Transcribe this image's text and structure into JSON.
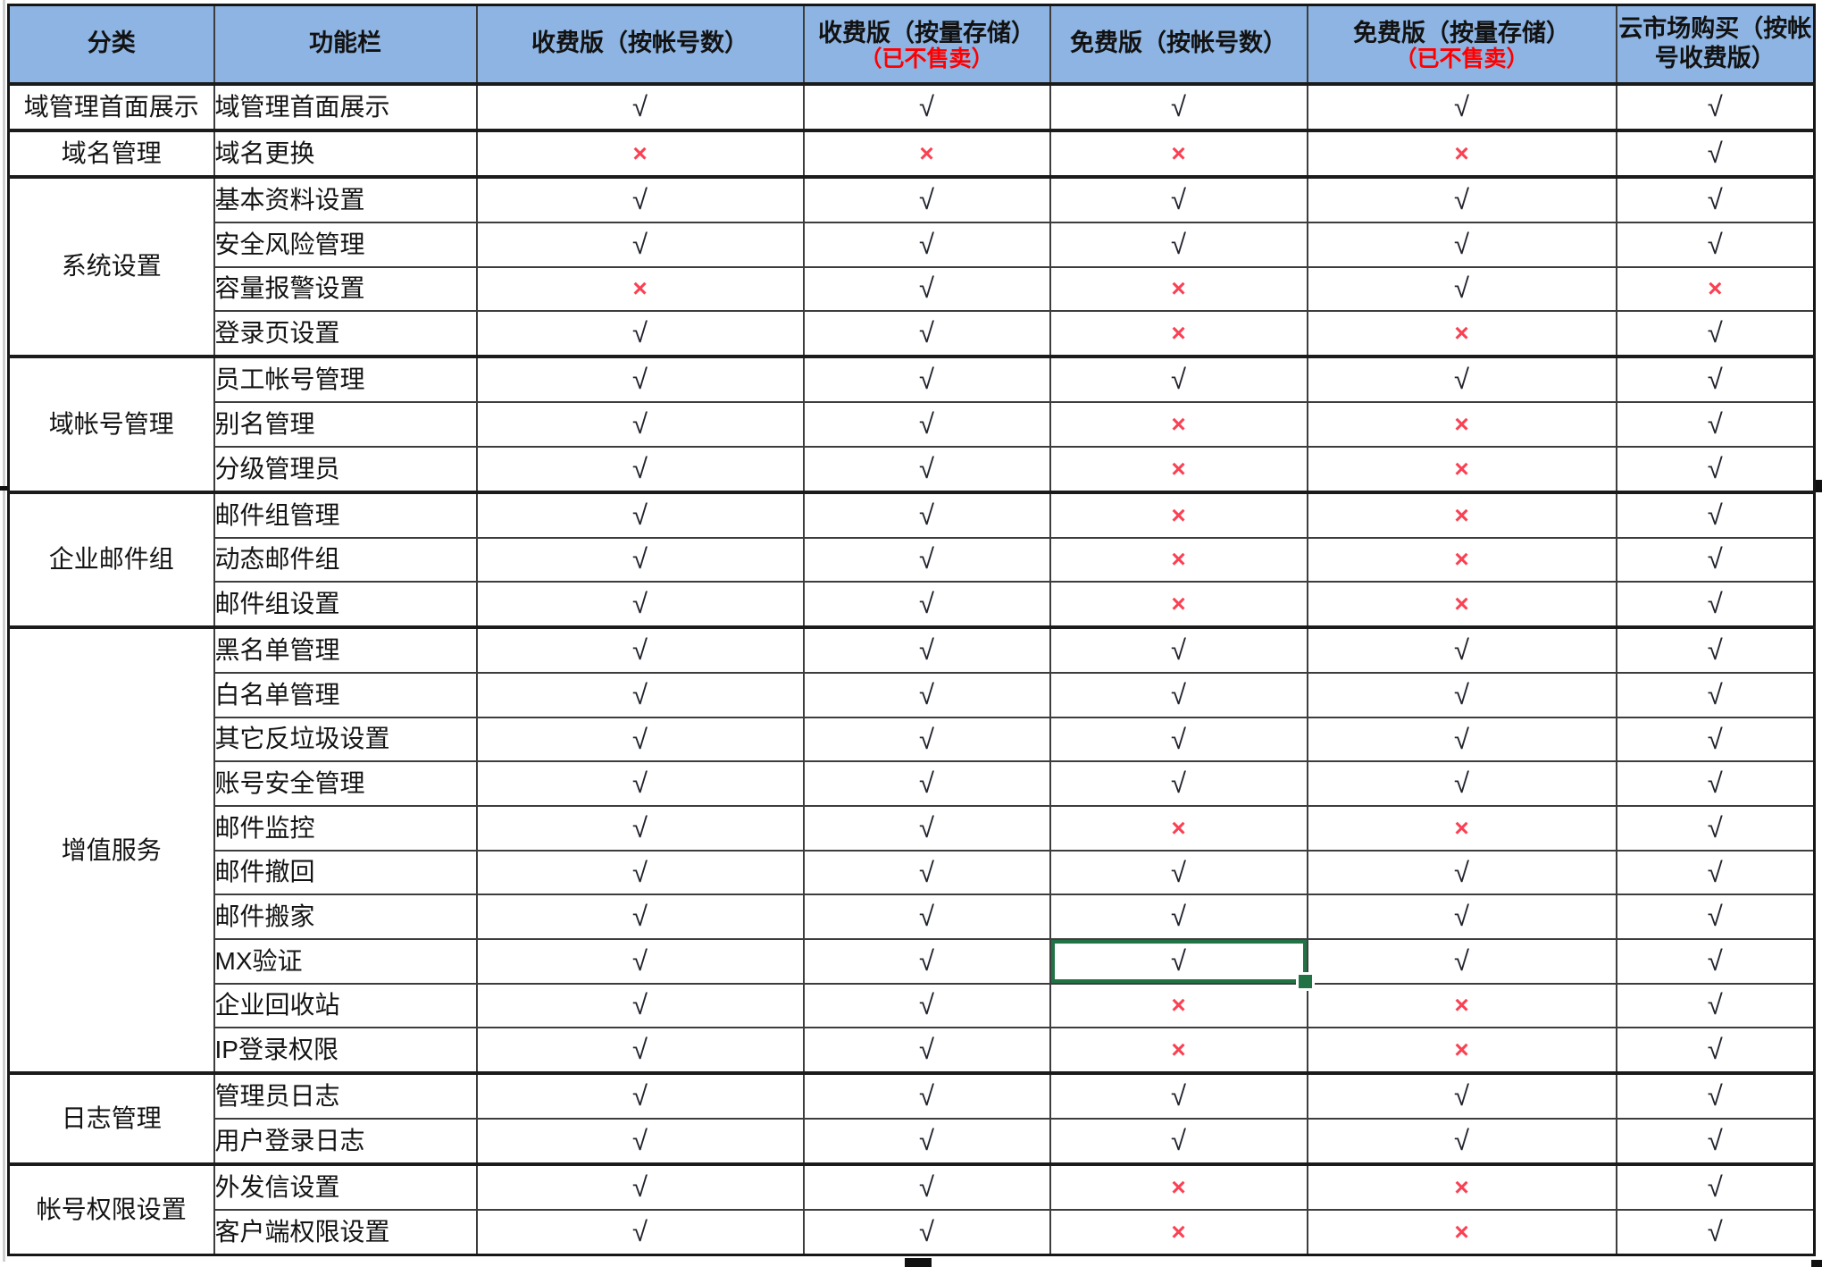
{
  "colors": {
    "header_bg": "#8DB4E2",
    "header_note_red": "#FF0000",
    "cross_red": "#FA4153",
    "check_dark": "#22242E",
    "selection_green": "#217346",
    "grid_line": "#3D3D3D"
  },
  "glyphs": {
    "check": "√",
    "cross": "×"
  },
  "table": {
    "columns": [
      {
        "label": "分类"
      },
      {
        "label": "功能栏"
      },
      {
        "label": "收费版（按帐号数）"
      },
      {
        "label": "收费版（按量存储）",
        "note": "（已不售卖）"
      },
      {
        "label": "免费版（按帐号数）"
      },
      {
        "label": "免费版（按量存储）",
        "note": "（已不售卖）"
      },
      {
        "label": "云市场购买（按帐号收费版）"
      }
    ],
    "sections": [
      {
        "category": "域管理首面展示",
        "rows": [
          {
            "feature": "域管理首面展示",
            "marks": [
              "√",
              "√",
              "√",
              "√",
              "√"
            ]
          }
        ]
      },
      {
        "category": "域名管理",
        "rows": [
          {
            "feature": "域名更换",
            "marks": [
              "×",
              "×",
              "×",
              "×",
              "√"
            ]
          }
        ]
      },
      {
        "category": "系统设置",
        "rows": [
          {
            "feature": "基本资料设置",
            "marks": [
              "√",
              "√",
              "√",
              "√",
              "√"
            ]
          },
          {
            "feature": "安全风险管理",
            "marks": [
              "√",
              "√",
              "√",
              "√",
              "√"
            ]
          },
          {
            "feature": "容量报警设置",
            "marks": [
              "×",
              "√",
              "×",
              "√",
              "×"
            ]
          },
          {
            "feature": "登录页设置",
            "marks": [
              "√",
              "√",
              "×",
              "×",
              "√"
            ]
          }
        ]
      },
      {
        "category": "域帐号管理",
        "rows": [
          {
            "feature": "员工帐号管理",
            "marks": [
              "√",
              "√",
              "√",
              "√",
              "√"
            ]
          },
          {
            "feature": "别名管理",
            "marks": [
              "√",
              "√",
              "×",
              "×",
              "√"
            ]
          },
          {
            "feature": "分级管理员",
            "marks": [
              "√",
              "√",
              "×",
              "×",
              "√"
            ]
          }
        ]
      },
      {
        "category": "企业邮件组",
        "rows": [
          {
            "feature": "邮件组管理",
            "marks": [
              "√",
              "√",
              "×",
              "×",
              "√"
            ]
          },
          {
            "feature": "动态邮件组",
            "marks": [
              "√",
              "√",
              "×",
              "×",
              "√"
            ]
          },
          {
            "feature": "邮件组设置",
            "marks": [
              "√",
              "√",
              "×",
              "×",
              "√"
            ]
          }
        ]
      },
      {
        "category": "增值服务",
        "rows": [
          {
            "feature": "黑名单管理",
            "marks": [
              "√",
              "√",
              "√",
              "√",
              "√"
            ]
          },
          {
            "feature": "白名单管理",
            "marks": [
              "√",
              "√",
              "√",
              "√",
              "√"
            ]
          },
          {
            "feature": "其它反垃圾设置",
            "marks": [
              "√",
              "√",
              "√",
              "√",
              "√"
            ]
          },
          {
            "feature": "账号安全管理",
            "marks": [
              "√",
              "√",
              "√",
              "√",
              "√"
            ]
          },
          {
            "feature": "邮件监控",
            "marks": [
              "√",
              "√",
              "×",
              "×",
              "√"
            ]
          },
          {
            "feature": "邮件撤回",
            "marks": [
              "√",
              "√",
              "√",
              "√",
              "√"
            ]
          },
          {
            "feature": "邮件搬家",
            "marks": [
              "√",
              "√",
              "√",
              "√",
              "√"
            ]
          },
          {
            "feature": "MX验证",
            "marks": [
              "√",
              "√",
              "√",
              "√",
              "√"
            ],
            "selected_col": 2
          },
          {
            "feature": "企业回收站",
            "marks": [
              "√",
              "√",
              "×",
              "×",
              "√"
            ]
          },
          {
            "feature": "IP登录权限",
            "marks": [
              "√",
              "√",
              "×",
              "×",
              "√"
            ]
          }
        ]
      },
      {
        "category": "日志管理",
        "rows": [
          {
            "feature": "管理员日志",
            "marks": [
              "√",
              "√",
              "√",
              "√",
              "√"
            ]
          },
          {
            "feature": "用户登录日志",
            "marks": [
              "√",
              "√",
              "√",
              "√",
              "√"
            ]
          }
        ]
      },
      {
        "category": "帐号权限设置",
        "rows": [
          {
            "feature": "外发信设置",
            "marks": [
              "√",
              "√",
              "×",
              "×",
              "√"
            ]
          },
          {
            "feature": "客户端权限设置",
            "marks": [
              "√",
              "√",
              "×",
              "×",
              "√"
            ]
          }
        ]
      }
    ]
  }
}
